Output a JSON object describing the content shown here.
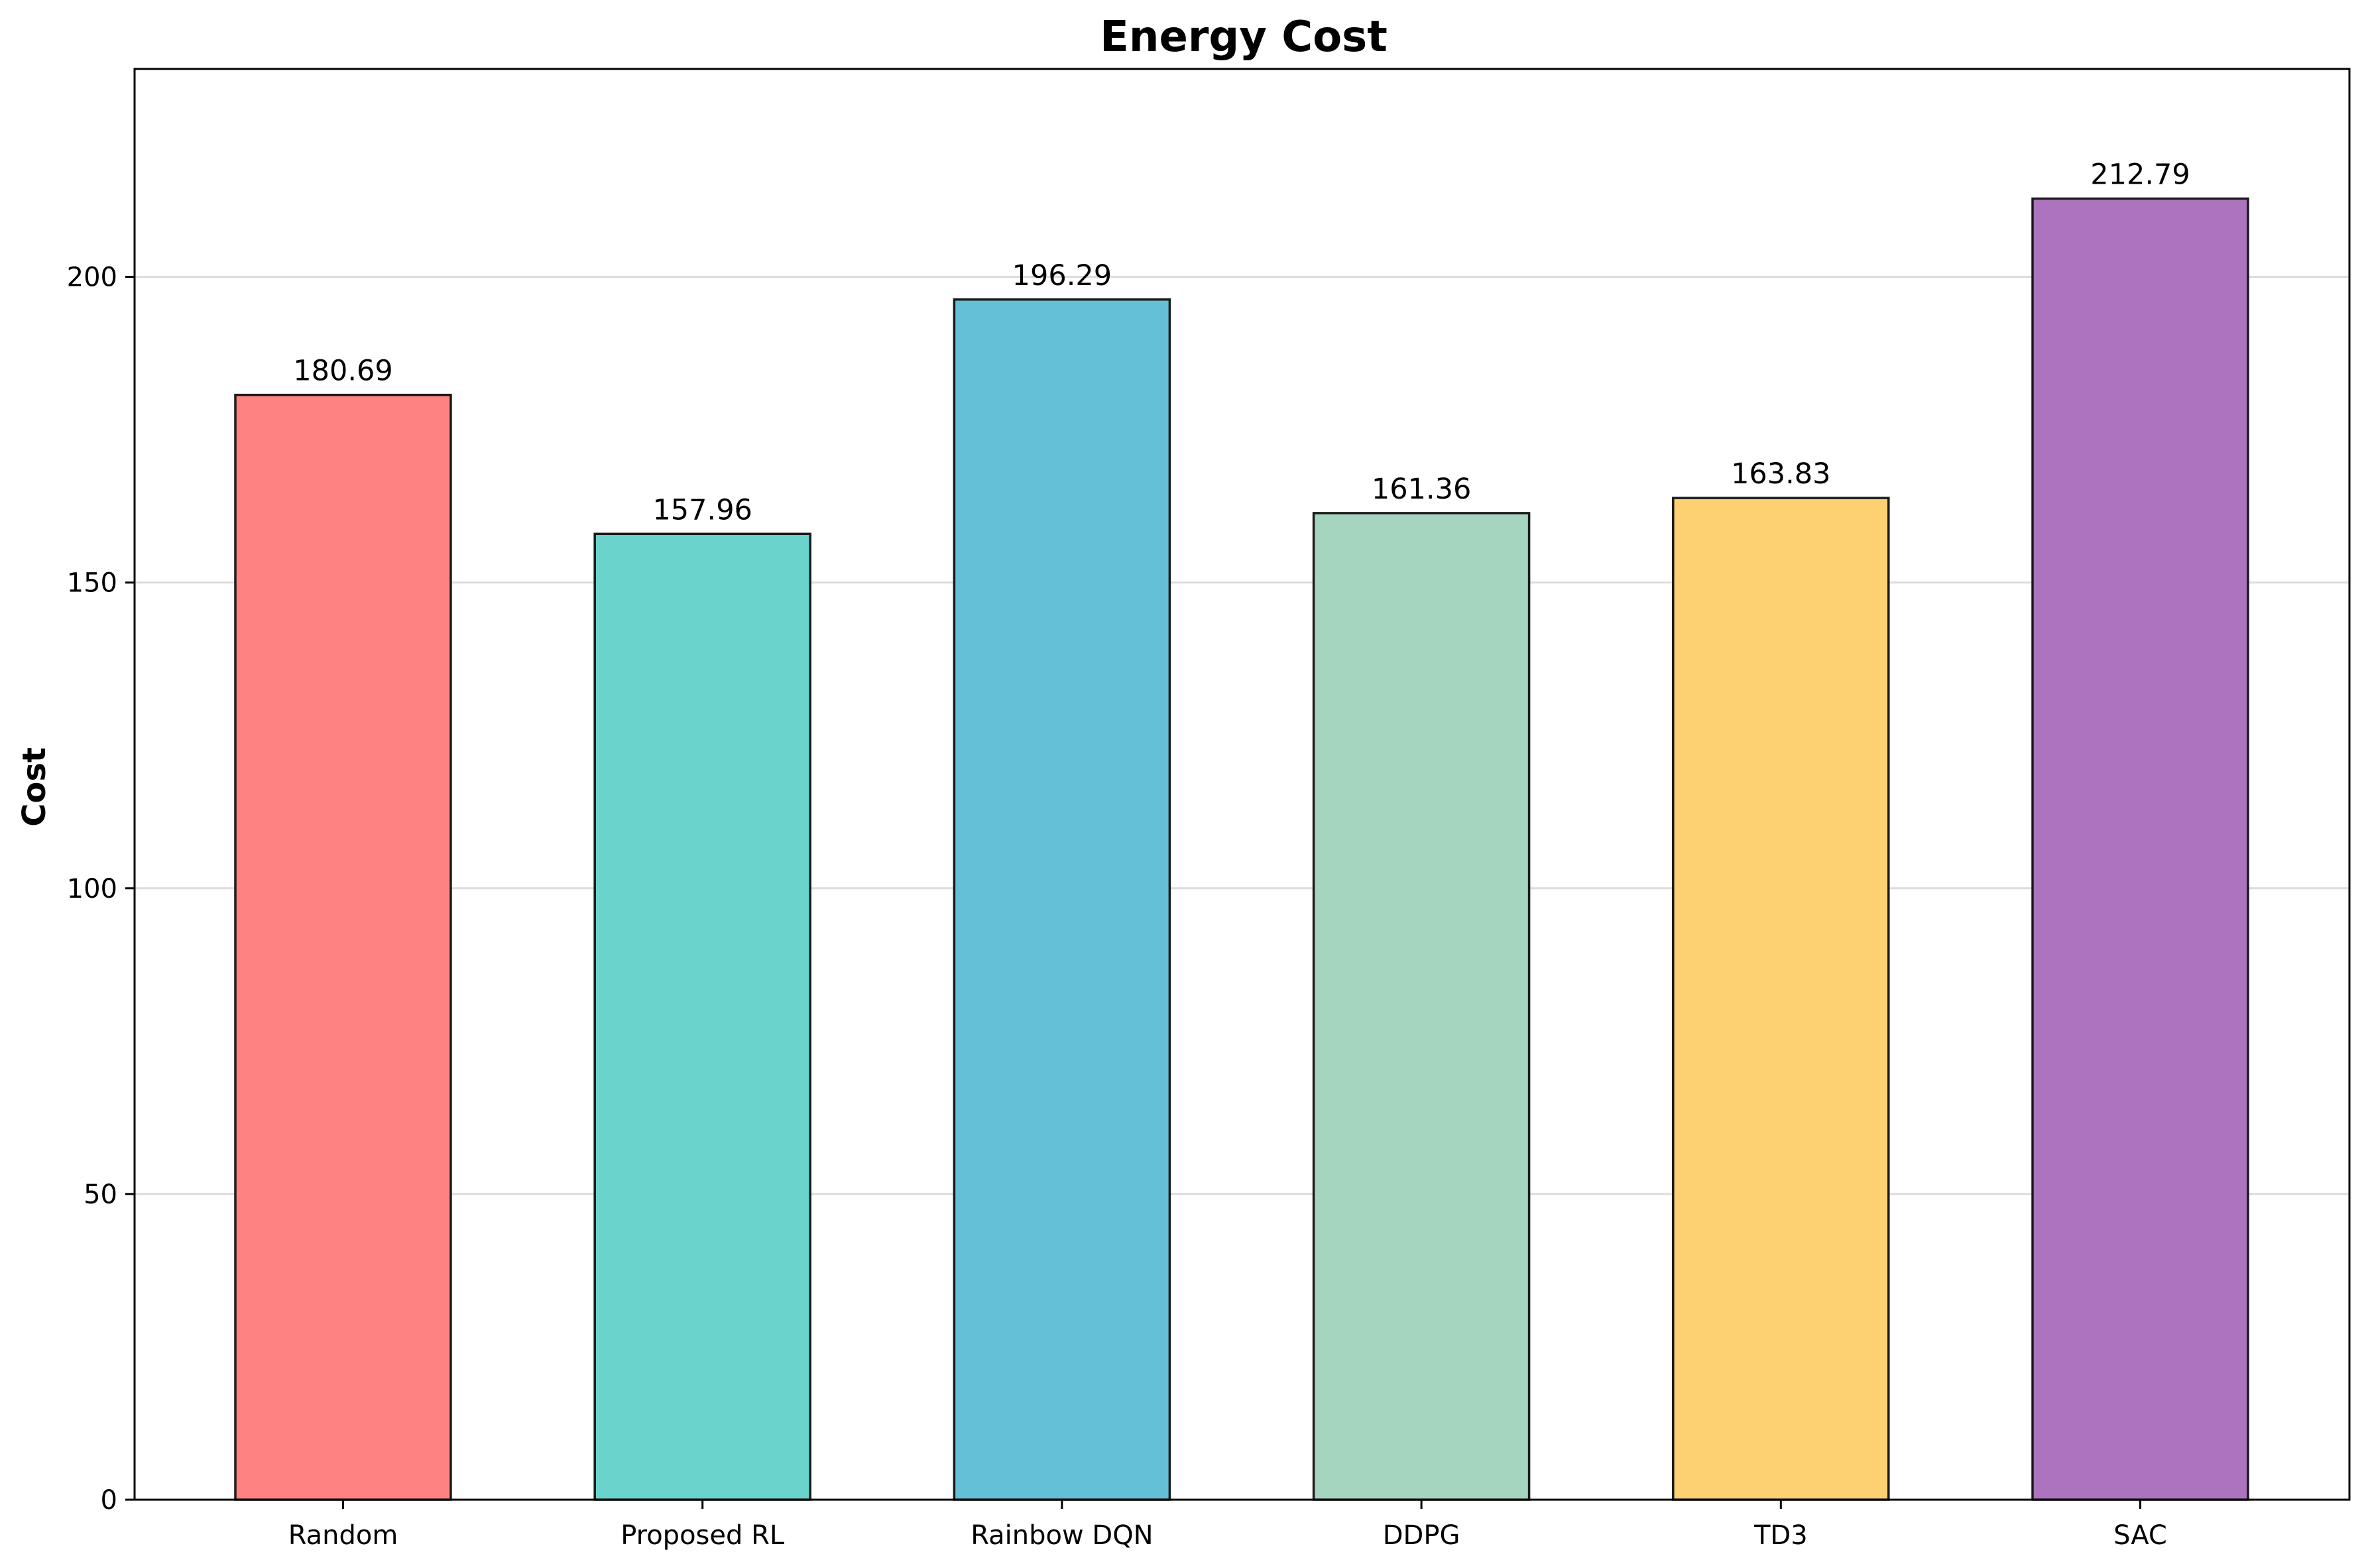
{
  "chart_data": {
    "type": "bar",
    "title": "Energy Cost",
    "xlabel": "",
    "ylabel": "Cost",
    "categories": [
      "Random",
      "Proposed RL",
      "Rainbow DQN",
      "DDPG",
      "TD3",
      "SAC"
    ],
    "values": [
      180.69,
      157.96,
      196.29,
      161.36,
      163.83,
      212.79
    ],
    "value_labels": [
      "180.69",
      "157.96",
      "196.29",
      "161.36",
      "163.83",
      "212.79"
    ],
    "colors": [
      "#ff8282",
      "#6ad4cc",
      "#63c0d6",
      "#a6d5bf",
      "#fdd072",
      "#ac73bf"
    ],
    "ylim": [
      0,
      234
    ],
    "yticks": [
      0,
      50,
      100,
      150,
      200
    ],
    "ytick_labels": [
      "0",
      "50",
      "100",
      "150",
      "200"
    ],
    "grid": "y",
    "legend": "none"
  }
}
